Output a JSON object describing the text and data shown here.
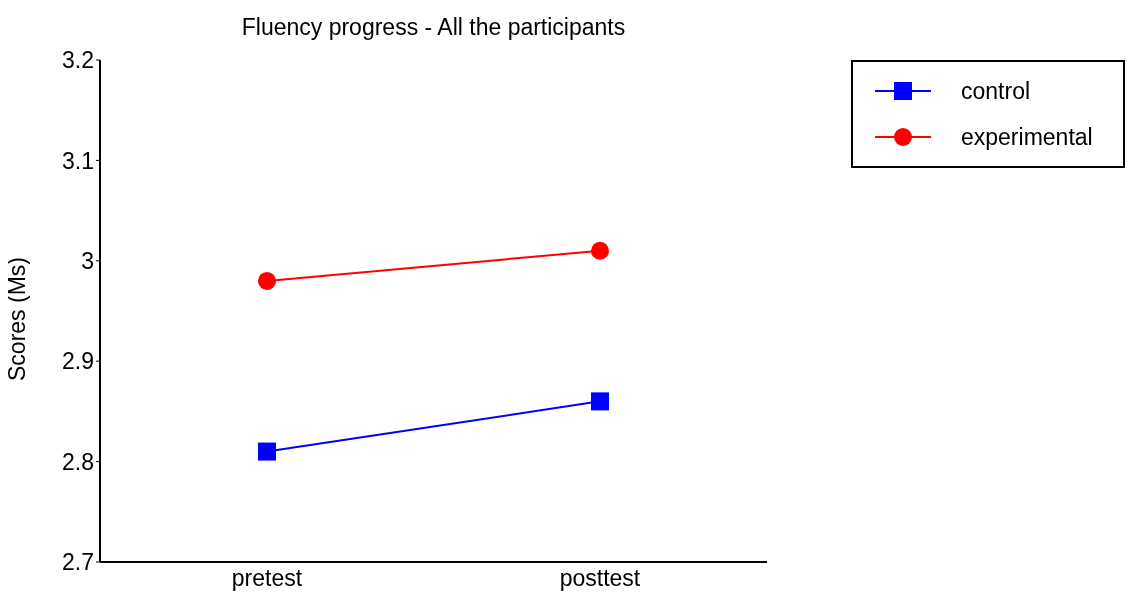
{
  "chart_data": {
    "type": "line",
    "title": "Fluency progress - All the participants",
    "ylabel": "Scores (Ms)",
    "categories": [
      "pretest",
      "posttest"
    ],
    "series": [
      {
        "name": "control",
        "color": "#0000ff",
        "marker": "square",
        "values": [
          2.81,
          2.86
        ]
      },
      {
        "name": "experimental",
        "color": "#ff0000",
        "marker": "circle",
        "values": [
          2.98,
          3.01
        ]
      }
    ],
    "ylim": [
      2.7,
      3.2
    ],
    "yticks": [
      2.7,
      2.8,
      2.9,
      3,
      3.1,
      3.2
    ],
    "grid": false,
    "legend": "top right"
  }
}
